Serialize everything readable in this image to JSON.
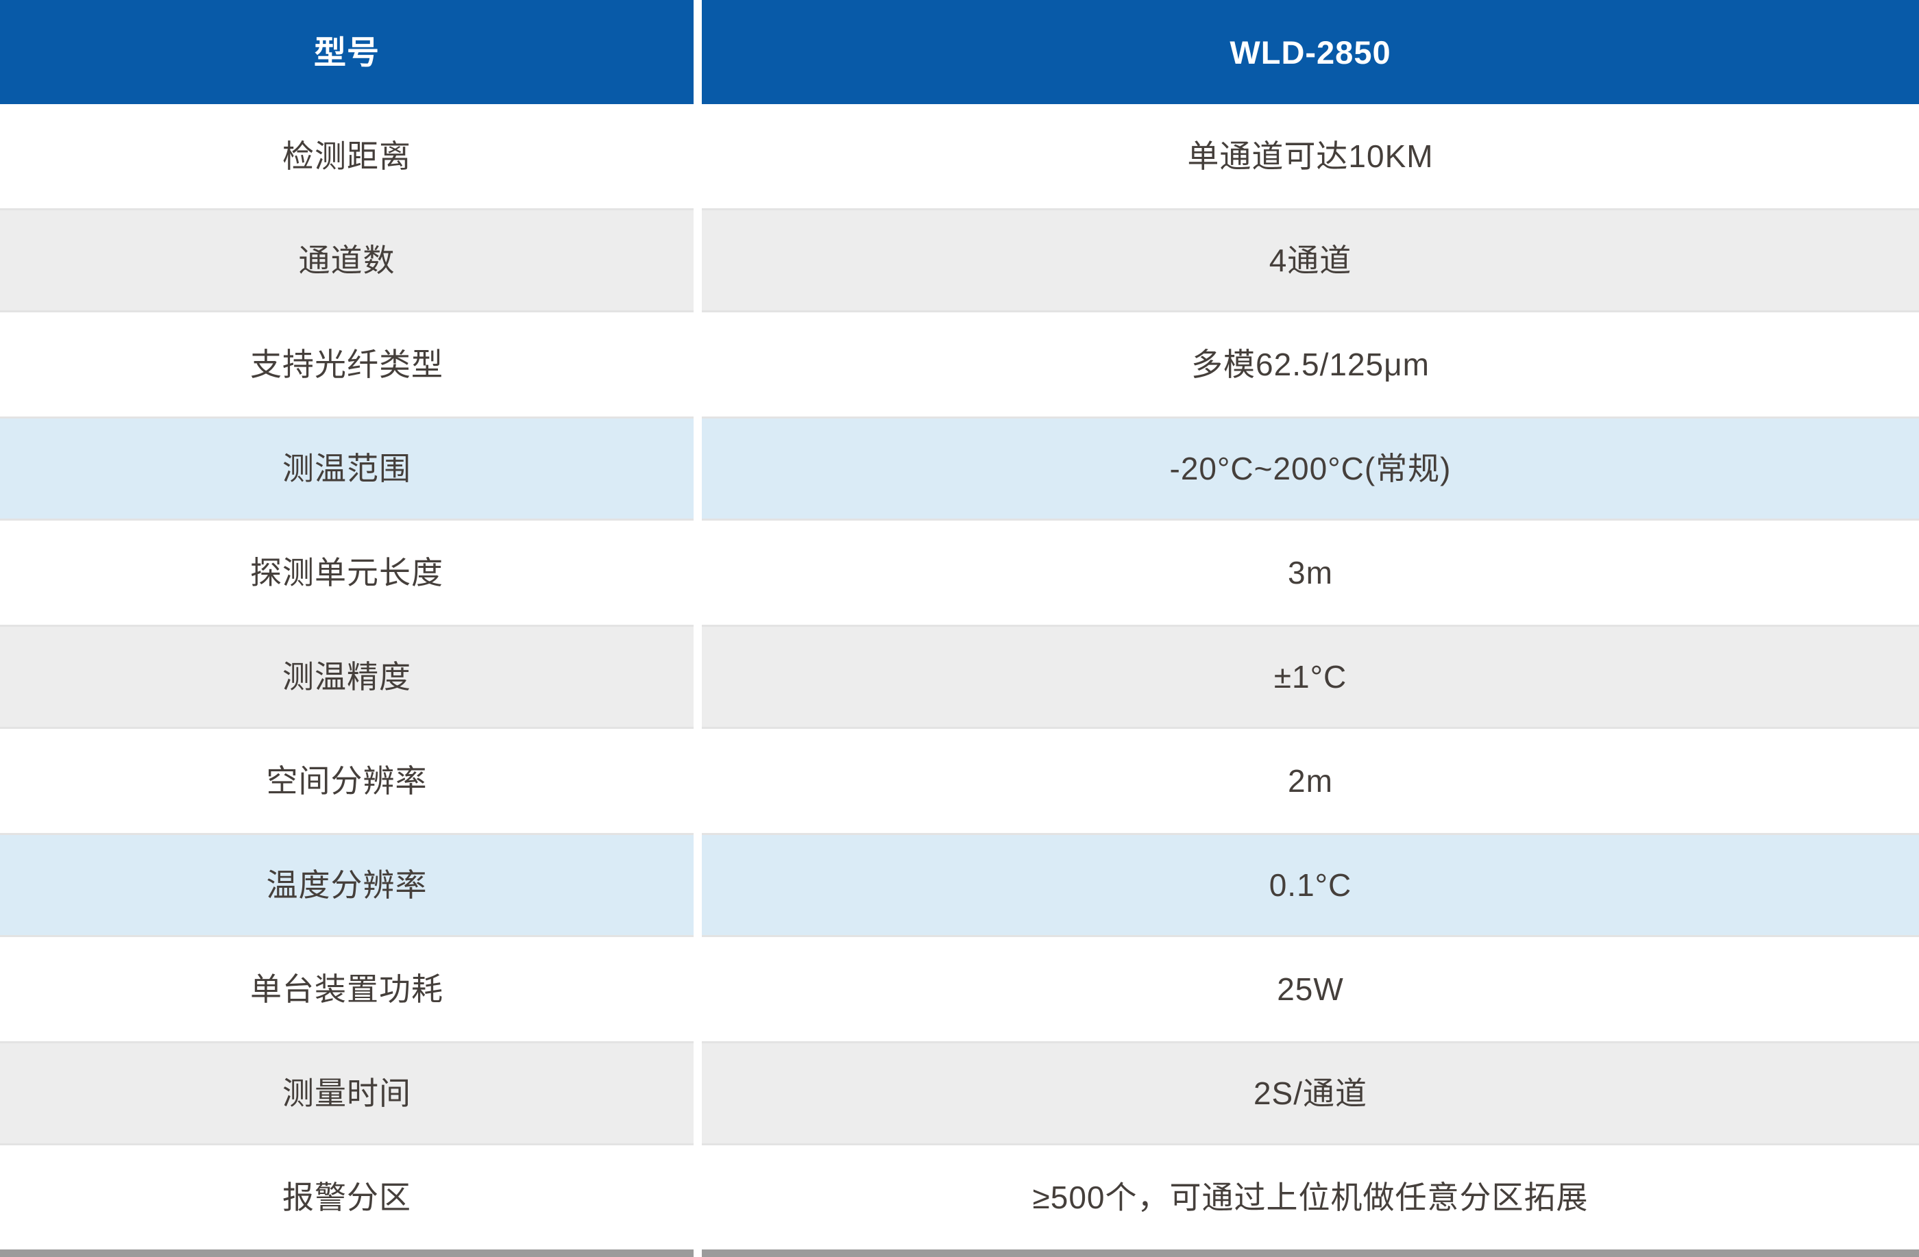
{
  "colors": {
    "header-bg": "#085AA8",
    "header-text": "#FFFFFF",
    "row-white": "#FFFFFF",
    "row-gray": "#EDEDED",
    "row-blue": "#DAEBF6",
    "row-edge": "#E3E3E3",
    "divider": "#FFFFFF",
    "bottom-bar": "#9B9B9B",
    "body-text": "#453F3B"
  },
  "table": {
    "header": {
      "param": "型号",
      "value": "WLD-2850"
    },
    "rows": [
      {
        "param": "检测距离",
        "value": "单通道可达10KM",
        "variant": "white"
      },
      {
        "param": "通道数",
        "value": "4通道",
        "variant": "gray"
      },
      {
        "param": "支持光纤类型",
        "value": "多模62.5/125μm",
        "variant": "white"
      },
      {
        "param": "测温范围",
        "value": "-20°C~200°C(常规)",
        "variant": "blue"
      },
      {
        "param": "探测单元长度",
        "value": "3m",
        "variant": "white"
      },
      {
        "param": "测温精度",
        "value": "±1°C",
        "variant": "gray"
      },
      {
        "param": "空间分辨率",
        "value": "2m",
        "variant": "white"
      },
      {
        "param": "温度分辨率",
        "value": "0.1°C",
        "variant": "blue"
      },
      {
        "param": "单台装置功耗",
        "value": "25W",
        "variant": "white"
      },
      {
        "param": "测量时间",
        "value": "2S/通道",
        "variant": "gray"
      },
      {
        "param": "报警分区",
        "value": "≥500个，可通过上位机做任意分区拓展",
        "variant": "white"
      }
    ]
  }
}
